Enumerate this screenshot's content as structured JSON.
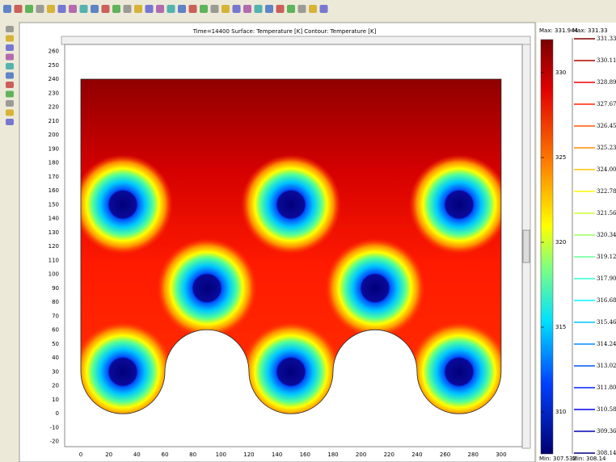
{
  "plot": {
    "title": "Time=14400   Surface: Temperature [K]   Contour: Temperature [K]",
    "x_ticks": [
      0,
      20,
      40,
      60,
      80,
      100,
      120,
      140,
      160,
      180,
      200,
      220,
      240,
      260,
      280,
      300
    ],
    "y_ticks": [
      -20,
      -10,
      0,
      10,
      20,
      30,
      40,
      50,
      60,
      70,
      80,
      90,
      100,
      110,
      120,
      130,
      140,
      150,
      160,
      170,
      180,
      190,
      200,
      210,
      220,
      230,
      240,
      250,
      260
    ]
  },
  "colorbar": {
    "max_label": "Max: 331.944",
    "min_label": "Min: 307.532",
    "ticks": [
      330,
      325,
      320,
      315,
      310
    ]
  },
  "contour_legend": {
    "max_label": "Max: 331.33",
    "min_label": "Min: 308.14",
    "levels": [
      "331.333",
      "330.112",
      "328.89",
      "327.67",
      "326.45",
      "325.23",
      "324.00",
      "322.78",
      "321.56",
      "320.34",
      "319.12",
      "317.90",
      "316.68",
      "315.46",
      "314.24",
      "313.02",
      "311.80",
      "310.58",
      "309.36",
      "308.14"
    ]
  }
}
